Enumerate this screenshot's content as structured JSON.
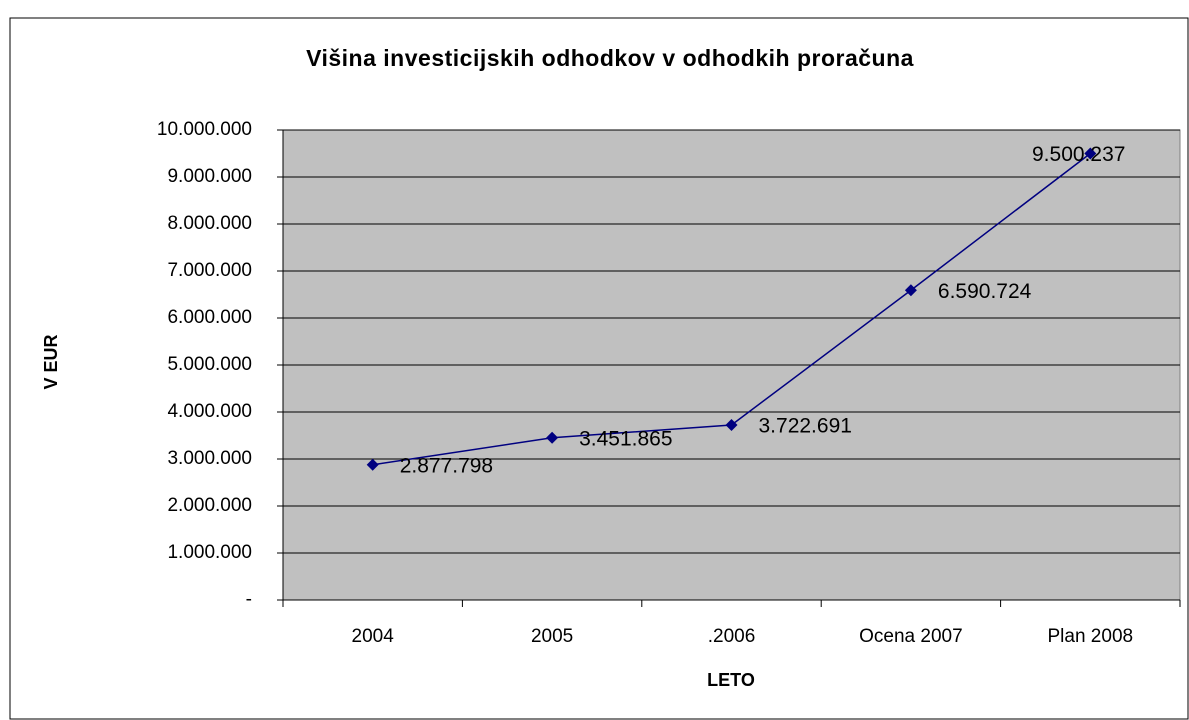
{
  "chart_data": {
    "type": "line",
    "title": "Višina investicijskih odhodkov v odhodkih proračuna",
    "x_label": "LETO",
    "y_label": "V EUR",
    "categories": [
      "2004",
      "2005",
      ".2006",
      "Ocena 2007",
      "Plan 2008"
    ],
    "series": [
      {
        "color": "#000080",
        "values": [
          2877798,
          3451865,
          3722691,
          6590724,
          9500237
        ],
        "value_labels": [
          "2.877.798",
          "3.451.865",
          "3.722.691",
          "6.590.724",
          "9.500.237"
        ]
      }
    ],
    "ylim": [
      0,
      10000000
    ],
    "yticks": [
      {
        "value": 0,
        "label": "-"
      },
      {
        "value": 1000000,
        "label": "1.000.000"
      },
      {
        "value": 2000000,
        "label": "2.000.000"
      },
      {
        "value": 3000000,
        "label": "3.000.000"
      },
      {
        "value": 4000000,
        "label": "4.000.000"
      },
      {
        "value": 5000000,
        "label": "5.000.000"
      },
      {
        "value": 6000000,
        "label": "6.000.000"
      },
      {
        "value": 7000000,
        "label": "7.000.000"
      },
      {
        "value": 8000000,
        "label": "8.000.000"
      },
      {
        "value": 9000000,
        "label": "9.000.000"
      },
      {
        "value": 10000000,
        "label": "10.000.000"
      }
    ],
    "grid": true
  }
}
